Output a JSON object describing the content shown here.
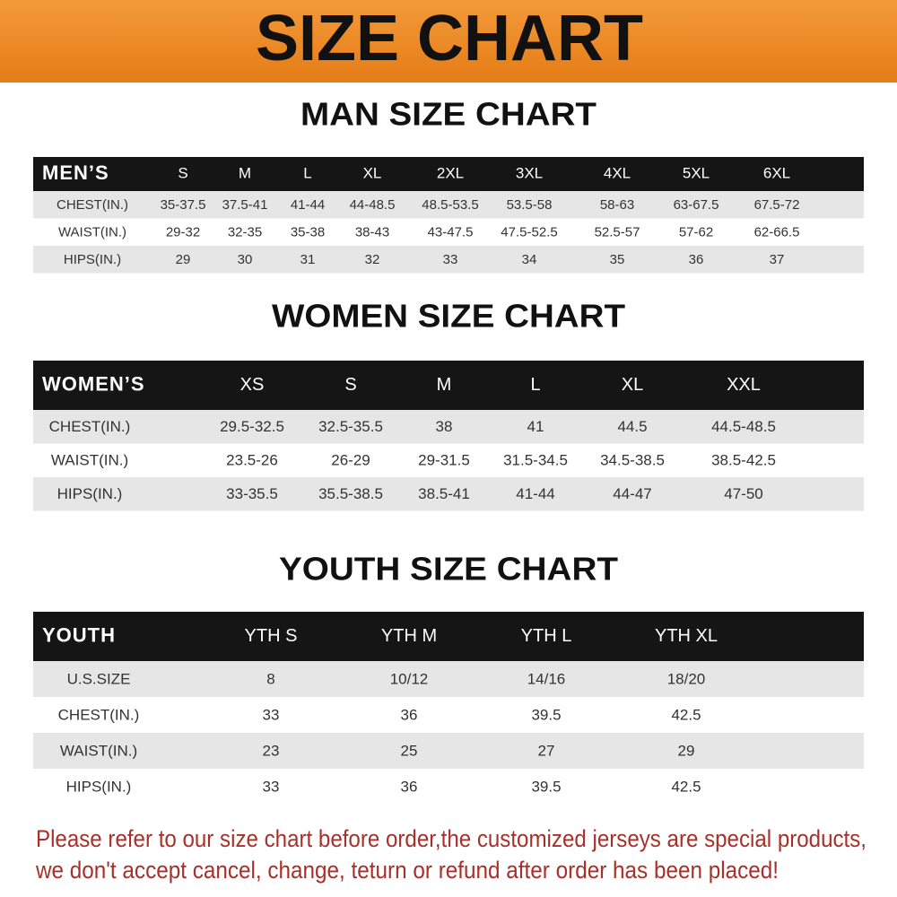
{
  "header": {
    "title": "SIZE CHART"
  },
  "sections": [
    {
      "title": "MAN SIZE CHART",
      "table": {
        "header": [
          "MEN’S",
          "S",
          "M",
          "L",
          "XL",
          "2XL",
          "3XL",
          "4XL",
          "5XL",
          "6XL"
        ],
        "rows": [
          [
            "CHEST(IN.)",
            "35-37.5",
            "37.5-41",
            "41-44",
            "44-48.5",
            "48.5-53.5",
            "53.5-58",
            "58-63",
            "63-67.5",
            "67.5-72"
          ],
          [
            "WAIST(IN.)",
            "29-32",
            "32-35",
            "35-38",
            "38-43",
            "43-47.5",
            "47.5-52.5",
            "52.5-57",
            "57-62",
            "62-66.5"
          ],
          [
            "HIPS(IN.)",
            "29",
            "30",
            "31",
            "32",
            "33",
            "34",
            "35",
            "36",
            "37"
          ]
        ]
      }
    },
    {
      "title": "WOMEN SIZE CHART",
      "table": {
        "header": [
          "WOMEN’S",
          "XS",
          "S",
          "M",
          "L",
          "XL",
          "XXL"
        ],
        "rows": [
          [
            "CHEST(IN.)",
            "29.5-32.5",
            "32.5-35.5",
            "38",
            "41",
            "44.5",
            "44.5-48.5"
          ],
          [
            "WAIST(IN.)",
            "23.5-26",
            "26-29",
            "29-31.5",
            "31.5-34.5",
            "34.5-38.5",
            "38.5-42.5"
          ],
          [
            "HIPS(IN.)",
            "33-35.5",
            "35.5-38.5",
            "38.5-41",
            "41-44",
            "44-47",
            "47-50"
          ]
        ]
      }
    },
    {
      "title": "YOUTH SIZE CHART",
      "table": {
        "header": [
          "YOUTH",
          "YTH S",
          "YTH M",
          "YTH L",
          "YTH XL"
        ],
        "rows": [
          [
            "U.S.SIZE",
            "8",
            "10/12",
            "14/16",
            "18/20"
          ],
          [
            "CHEST(IN.)",
            "33",
            "36",
            "39.5",
            "42.5"
          ],
          [
            "WAIST(IN.)",
            "23",
            "25",
            "27",
            "29"
          ],
          [
            "HIPS(IN.)",
            "33",
            "36",
            "39.5",
            "42.5"
          ]
        ]
      }
    }
  ],
  "footer": {
    "lines": [
      "Please refer to our size chart before order,the customized jerseys are special products,",
      "we don't accept cancel, change, teturn or refund after order has been placed!"
    ]
  }
}
